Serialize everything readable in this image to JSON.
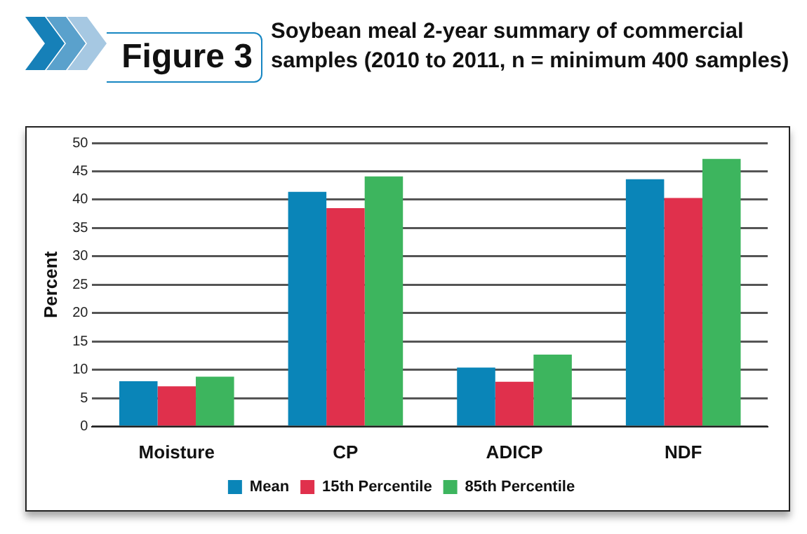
{
  "chart_data": {
    "type": "bar",
    "title": "Soybean meal 2-year summary of commercial samples (2010 to 2011, n = minimum 400 samples)",
    "annotations": [
      "Figure 3"
    ],
    "ylabel": "Percent",
    "categories": [
      "Moisture",
      "CP",
      "ADICP",
      "NDF"
    ],
    "series": [
      {
        "name": "Mean",
        "color": "#0a85b8",
        "values": [
          8.0,
          41.4,
          10.4,
          43.6
        ]
      },
      {
        "name": "15th Percentile",
        "color": "#e0304c",
        "values": [
          7.1,
          38.5,
          7.9,
          40.3
        ]
      },
      {
        "name": "85th Percentile",
        "color": "#3db55e",
        "values": [
          8.8,
          44.1,
          12.7,
          47.2
        ]
      }
    ],
    "ylim": [
      0,
      50
    ],
    "yticks": [
      0,
      5,
      10,
      15,
      20,
      25,
      30,
      35,
      40,
      45,
      50
    ],
    "grid": "y",
    "legend": "bottom"
  }
}
